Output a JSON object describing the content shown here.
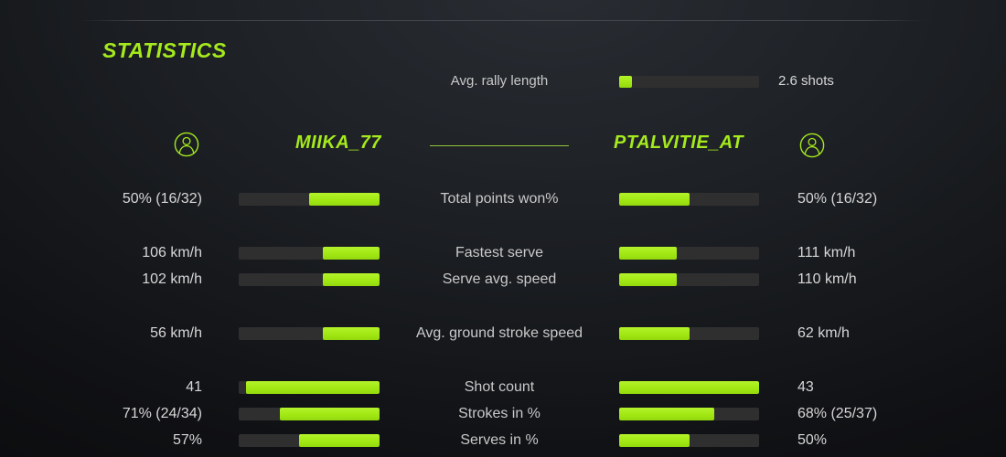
{
  "title": "STATISTICS",
  "colors": {
    "accent_green": "#a5ea1d",
    "bar_fill_green": "#a2e814",
    "bar_track": "#2f2f30",
    "value_text": "#d7d7d7",
    "label_text": "#c9c9c9",
    "background": "#17191d"
  },
  "rally": {
    "label": "Avg. rally length",
    "value": "2.6 shots",
    "fill_pct": 9
  },
  "players": {
    "left": "MIIKA_77",
    "right": "PTALVITIE_AT"
  },
  "stats": {
    "rows": [
      {
        "label": "Total points won%",
        "left_value": "50% (16/32)",
        "right_value": "50% (16/32)",
        "left_fill_pct": 50,
        "right_fill_pct": 50
      },
      {
        "label": "Fastest serve",
        "left_value": "106 km/h",
        "right_value": "111 km/h",
        "left_fill_pct": 40,
        "right_fill_pct": 41
      },
      {
        "label": "Serve avg. speed",
        "left_value": "102 km/h",
        "right_value": "110 km/h",
        "left_fill_pct": 40,
        "right_fill_pct": 41
      },
      {
        "label": "Avg. ground stroke speed",
        "left_value": "56 km/h",
        "right_value": "62 km/h",
        "left_fill_pct": 40,
        "right_fill_pct": 50
      },
      {
        "label": "Shot count",
        "left_value": "41",
        "right_value": "43",
        "left_fill_pct": 95,
        "right_fill_pct": 100
      },
      {
        "label": "Strokes in %",
        "left_value": "71% (24/34)",
        "right_value": "68% (25/37)",
        "left_fill_pct": 71,
        "right_fill_pct": 68
      },
      {
        "label": "Serves in %",
        "left_value": "57%",
        "right_value": "50%",
        "left_fill_pct": 57,
        "right_fill_pct": 50
      }
    ]
  }
}
